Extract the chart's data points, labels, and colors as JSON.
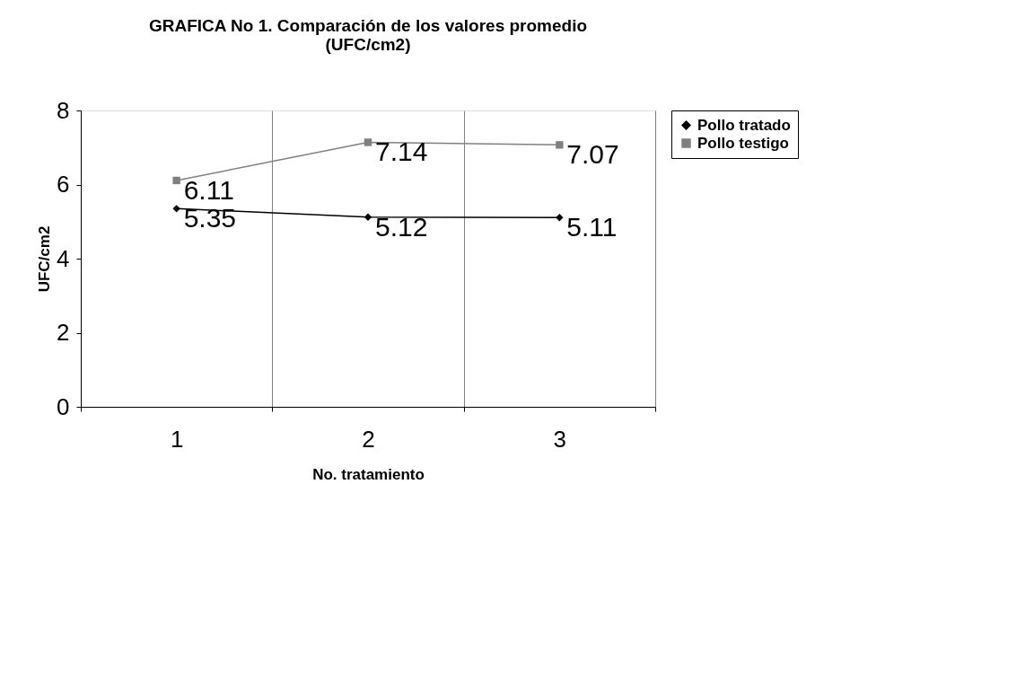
{
  "chart_data": {
    "type": "line",
    "title": "GRAFICA No 1. Comparación de los valores promedio\n(UFC/cm2)",
    "xlabel": "No. tratamiento",
    "ylabel": "UFC/cm2",
    "categories": [
      "1",
      "2",
      "3"
    ],
    "series": [
      {
        "name": "Pollo tratado",
        "color": "#000000",
        "marker": "diamond",
        "values": [
          5.35,
          5.12,
          5.11
        ]
      },
      {
        "name": "Pollo testigo",
        "color": "#808080",
        "marker": "square",
        "values": [
          6.11,
          7.14,
          7.07
        ]
      }
    ],
    "ylim": [
      0,
      8
    ],
    "yticks": [
      0,
      2,
      4,
      6,
      8
    ],
    "grid": "x",
    "legend": "right",
    "data_labels": true,
    "line_style": "solid"
  }
}
